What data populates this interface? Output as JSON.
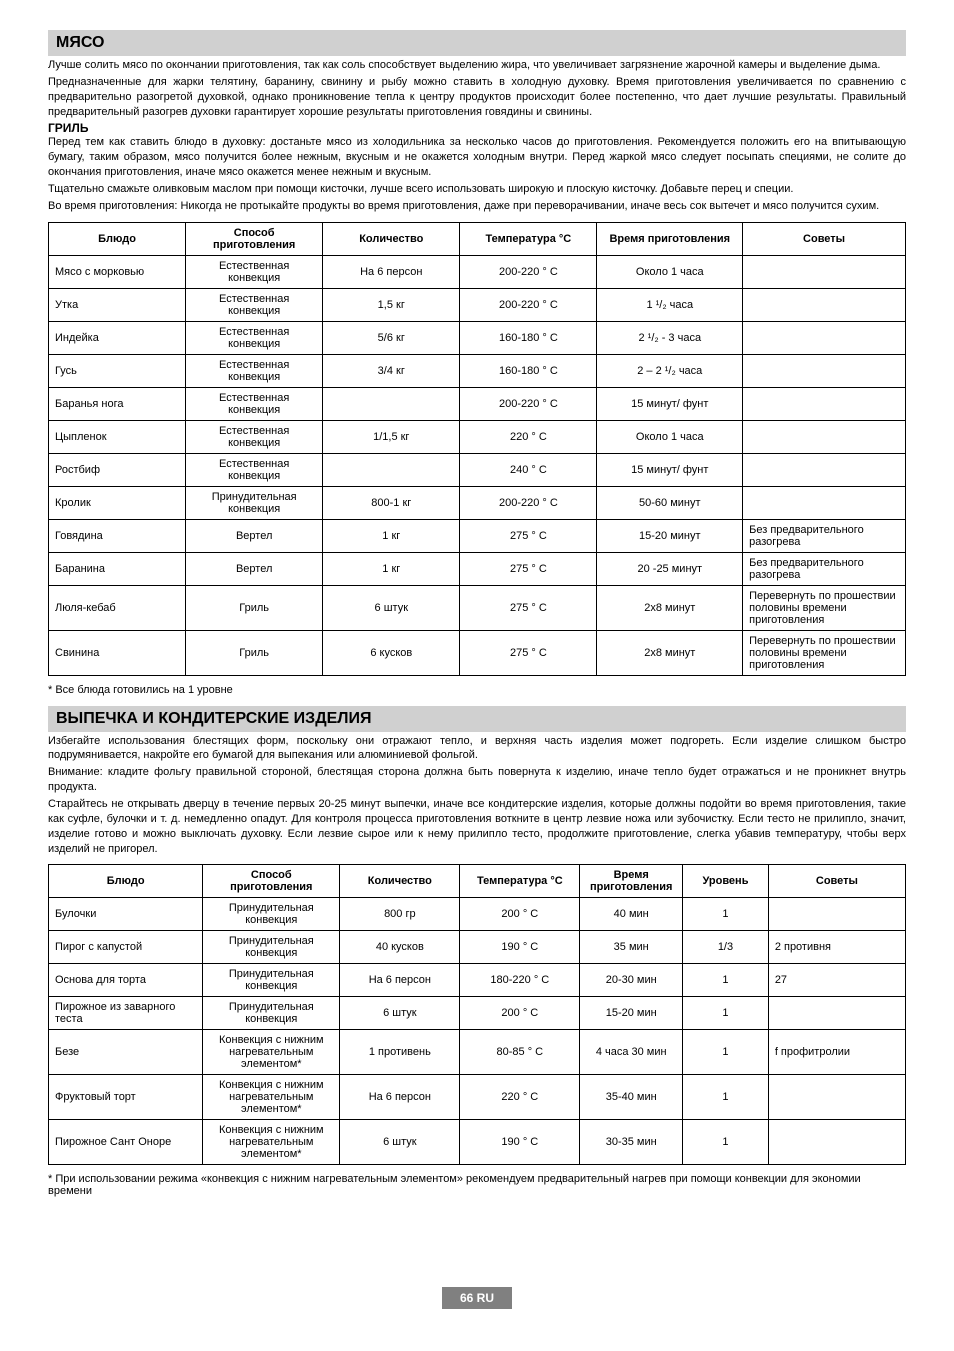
{
  "section1": {
    "title": "МЯСО",
    "para1": "Лучше солить мясо по окончании приготовления, так как соль способствует выделению жира, что увеличивает загрязнение жарочной камеры и выделение дыма.",
    "para2": "Предназначенные для жарки телятину, баранину, свинину и рыбу можно ставить в холодную духовку. Время приготовления увеличивается по сравнению с предварительно разогретой духовкой, однако проникновение тепла к центру продуктов происходит более постепенно, что дает лучшие результаты. Правильный предварительный разогрев духовки гарантирует хорошие результаты приготовления говядины и свинины.",
    "sub1": "ГРИЛЬ",
    "para3": "Перед тем как ставить блюдо в духовку: достаньте мясо из холодильника за несколько часов до приготовления. Рекомендуется положить его на впитывающую бумагу, таким образом, мясо получится более нежным, вкусным и не окажется холодным внутри. Перед жаркой мясо следует посыпать специями, не солите до окончания приготовления, иначе мясо окажется менее нежным и вкусным.",
    "para4": "Тщательно смажьте оливковым маслом при помощи кисточки, лучше всего использовать широкую и плоскую кисточку. Добавьте перец и специи.",
    "para5": "Во время приготовления: Никогда не протыкайте продукты во время приготовления, даже при переворачивании, иначе весь сок вытечет и мясо получится сухим.",
    "table": {
      "headers": [
        "Блюдо",
        "Способ приготовления",
        "Количество",
        "Температура °C",
        "Время приготовления",
        "Советы"
      ],
      "rows": [
        [
          "Мясо с морковью",
          "Естественная конвекция",
          "На 6 персон",
          "200-220 ° C",
          "Около 1 часа",
          ""
        ],
        [
          "Утка",
          "Естественная конвекция",
          "1,5 кг",
          "200-220 ° C",
          "1 ¹/₂ часа",
          ""
        ],
        [
          "Индейка",
          "Естественная конвекция",
          "5/6 кг",
          "160-180 ° C",
          "2 ¹/₂ - 3 часа",
          ""
        ],
        [
          "Гусь",
          "Естественная конвекция",
          "3/4 кг",
          "160-180 ° C",
          "2 – 2 ¹/₂ часа",
          ""
        ],
        [
          "Баранья нога",
          "Естественная конвекция",
          "",
          "200-220 ° C",
          "15 минут/ фунт",
          ""
        ],
        [
          "Цыпленок",
          "Естественная конвекция",
          "1/1,5 кг",
          "220 ° C",
          "Около 1 часа",
          ""
        ],
        [
          "Ростбиф",
          "Естественная конвекция",
          "",
          "240 ° C",
          "15 минут/ фунт",
          ""
        ],
        [
          "Кролик",
          "Принудительная конвекция",
          "800-1 кг",
          "200-220 ° C",
          "50-60 минут",
          ""
        ],
        [
          "Говядина",
          "Вертел",
          "1 кг",
          "275 ° C",
          "15-20 минут",
          "Без предварительного разогрева"
        ],
        [
          "Баранина",
          "Вертел",
          "1 кг",
          "275 ° C",
          "20 -25 минут",
          "Без предварительного разогрева"
        ],
        [
          "Люля-кебаб",
          "Гриль",
          "6 штук",
          "275 ° C",
          "2x8 минут",
          "Перевернуть по прошествии половины времени приготовления"
        ],
        [
          "Свинина",
          "Гриль",
          "6 кусков",
          "275 ° C",
          "2x8 минут",
          "Перевернуть по прошествии половины времени приготовления"
        ]
      ]
    },
    "note": "* Все блюда готовились на 1 уровне"
  },
  "section2": {
    "title": "ВЫПЕЧКА И КОНДИТЕРСКИЕ ИЗДЕЛИЯ",
    "para1": "Избегайте использования блестящих форм, поскольку они отражают тепло, и верхняя часть изделия может подгореть. Если изделие слишком быстро подрумянивается, накройте его бумагой для выпекания или алюминиевой фольгой.",
    "para2": "Внимание: кладите фольгу правильной стороной, блестящая сторона должна быть повернута к изделию, иначе тепло будет отражаться и не проникнет внутрь продукта.",
    "para3": "Старайтесь не открывать дверцу в течение первых 20-25 минут выпечки, иначе все кондитерские изделия, которые должны подойти во время приготовления, такие как суфле, булочки и т. д. немедленно опадут. Для контроля процесса приготовления воткните в центр лезвие ножа или зубочистку. Если тесто не прилипло, значит, изделие готово и можно выключать духовку. Если лезвие сырое или к нему прилипло тесто, продолжите приготовление, слегка убавив температуру, чтобы верх изделий не пригорел.",
    "table": {
      "headers": [
        "Блюдо",
        "Способ приготовления",
        "Количество",
        "Температура °C",
        "Время приготовления",
        "Уровень",
        "Советы"
      ],
      "rows": [
        [
          "Булочки",
          "Принудительная конвекция",
          "800 гр",
          "200 ° C",
          "40 мин",
          "1",
          ""
        ],
        [
          "Пирог с капустой",
          "Принудительная конвекция",
          "40 кусков",
          "190 ° C",
          "35 мин",
          "1/3",
          "2 противня"
        ],
        [
          "Основа для торта",
          "Принудительная конвекция",
          "На 6 персон",
          "180-220 ° C",
          "20-30 мин",
          "1",
          "27"
        ],
        [
          "Пирожное из заварного теста",
          "Принудительная конвекция",
          "6 штук",
          "200 ° C",
          "15-20 мин",
          "1",
          ""
        ],
        [
          "Безе",
          "Конвекция с нижним нагревательным элементом*",
          "1 противень",
          "80-85 ° C",
          "4 часа 30 мин",
          "1",
          "f профитролии"
        ],
        [
          "Фруктовый торт",
          "Конвекция с нижним нагревательным элементом*",
          "На 6 персон",
          "220 ° C",
          "35-40 мин",
          "1",
          ""
        ],
        [
          "Пирожное Сант Оноре",
          "Конвекция с нижним нагревательным элементом*",
          "6 штук",
          "190 ° C",
          "30-35 мин",
          "1",
          ""
        ]
      ]
    },
    "note": "* При использовании режима «конвекция с нижним нагревательным элементом» рекомендуем предварительный нагрев при помощи конвекции для экономии времени"
  },
  "footer": "66 RU",
  "style": {
    "header_bg": "#d0d0d0",
    "footer_bg": "#808080",
    "footer_fg": "#ffffff",
    "font_size_body": 11,
    "font_size_header": 16,
    "table1_col_widths_pct": [
      16,
      16,
      16,
      16,
      17,
      19
    ],
    "table2_col_widths_pct": [
      18,
      16,
      14,
      14,
      12,
      10,
      16
    ]
  }
}
